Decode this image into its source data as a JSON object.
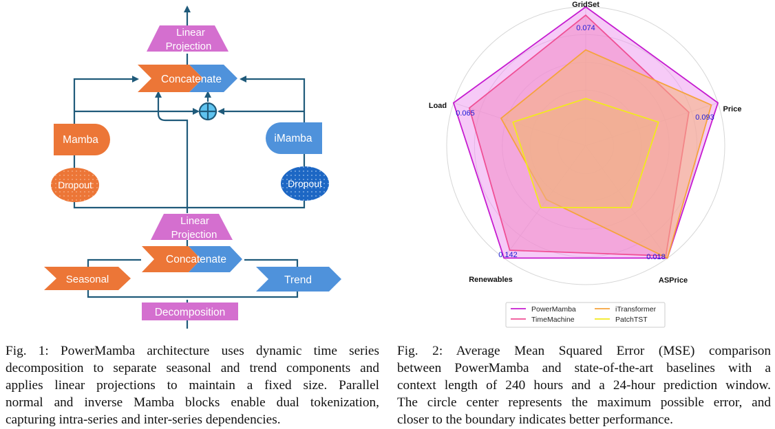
{
  "figure1": {
    "blocks": {
      "top_projection": [
        "Linear",
        "Projection"
      ],
      "top_concat": "Concatenate",
      "mamba": "Mamba",
      "imamba": "iMamba",
      "dropout_left": "Dropout",
      "dropout_right": "Dropout",
      "bottom_projection": [
        "Linear",
        "Projection"
      ],
      "bottom_concat": "Concatenate",
      "seasonal": "Seasonal",
      "trend": "Trend",
      "decomposition": "Decomposition"
    },
    "colors": {
      "pink": "#d46fcf",
      "orange": "#ec7637",
      "blue": "#4f92db",
      "line": "#1f5a7a"
    },
    "caption": [
      "Fig. 1: PowerMamba architecture uses dynamic time series",
      "decomposition to separate seasonal and trend components and",
      "applies linear projections to maintain a fixed size. Parallel",
      "normal and inverse Mamba blocks enable dual tokenization,",
      "capturing intra-series and inter-series dependencies."
    ]
  },
  "figure2": {
    "caption": [
      "Fig. 2: Average Mean Squared Error (MSE) comparison",
      "between PowerMamba and state-of-the-art baselines with a",
      "context length of 240 hours and a 24-hour prediction window.",
      "The circle center represents the maximum possible error, and",
      "closer to the boundary indicates better performance."
    ]
  },
  "chart_data": {
    "type": "radar",
    "axes": [
      "GridSet",
      "Price",
      "ASPrice",
      "Renewables",
      "Load"
    ],
    "axis_values": [
      "0.074",
      "0.093",
      "0.018",
      "0.142",
      "0.065"
    ],
    "radial_max": 1.0,
    "grid_circles": 5,
    "legend_position": "bottom",
    "series": [
      {
        "name": "PowerMamba",
        "color": "#c51bd0",
        "fill": "#ee9ef0",
        "values": [
          1.0,
          1.0,
          1.0,
          1.0,
          1.0
        ]
      },
      {
        "name": "TimeMachine",
        "color": "#f04f95",
        "fill": "#f08ac6",
        "values": [
          0.94,
          0.78,
          0.98,
          0.93,
          0.88
        ]
      },
      {
        "name": "iTransformer",
        "color": "#f5a33c",
        "fill": "#f5b27c",
        "values": [
          0.69,
          0.95,
          1.0,
          0.48,
          0.64
        ]
      },
      {
        "name": "PatchTST",
        "color": "#f2ea1c",
        "fill": "#efb088",
        "values": [
          0.34,
          0.55,
          0.55,
          0.55,
          0.55
        ]
      }
    ]
  }
}
